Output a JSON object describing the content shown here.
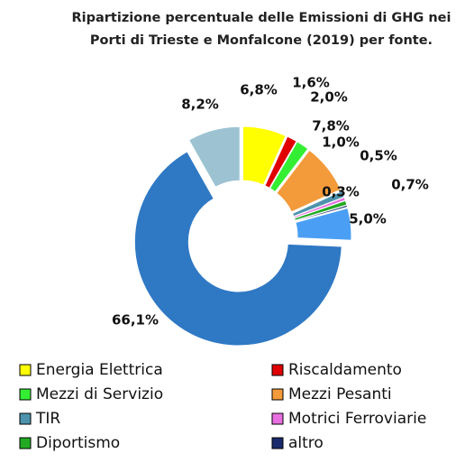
{
  "chart_data": {
    "type": "donut",
    "title": "Ripartizione percentuale delle Emissioni di GHG nei Porti di Trieste e Monfalcone (2019) per fonte.",
    "categories": [
      "Energia Elettrica",
      "Riscaldamento",
      "Mezzi di Servizio",
      "Mezzi Pesanti",
      "TIR",
      "Motrici Ferroviarie",
      "Diportismo",
      "altro",
      null,
      null,
      null
    ],
    "values": [
      6.8,
      1.6,
      2.0,
      7.8,
      1.0,
      0.5,
      0.7,
      0.3,
      5.0,
      66.1,
      8.2
    ],
    "value_labels": [
      "6,8%",
      "1,6%",
      "2,0%",
      "7,8%",
      "1,0%",
      "0,5%",
      "0,7%",
      "0,3%",
      "5,0%",
      "66,1%",
      "8,2%"
    ],
    "colors": [
      "#ffff00",
      "#e00000",
      "#33ee33",
      "#f39a3a",
      "#4d93ad",
      "#e86fe0",
      "#22aa22",
      "#1a2a6c",
      "#4a9ff5",
      "#2f78c4",
      "#9dc3d3"
    ],
    "legend": true
  }
}
